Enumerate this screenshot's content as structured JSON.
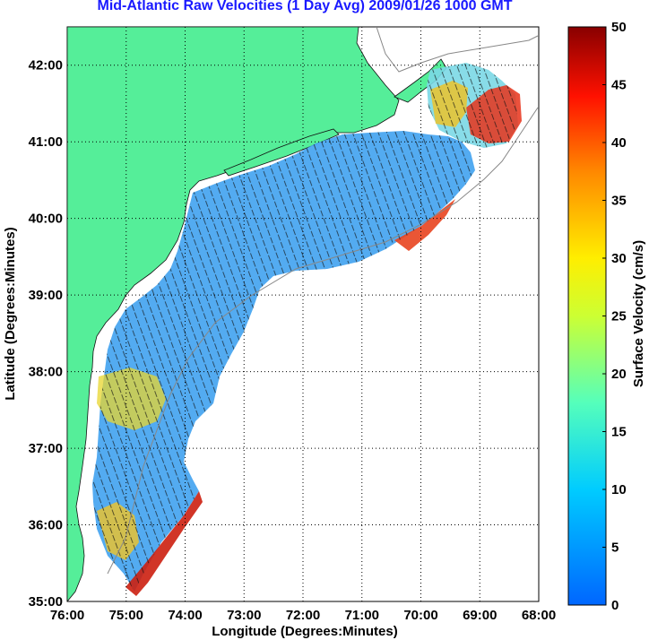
{
  "title": "Mid-Atlantic Raw Velocities (1 Day Avg) 2009/01/26 1000 GMT",
  "map": {
    "xlabel": "Longitude (Degrees:Minutes)",
    "ylabel": "Latitude (Degrees:Minutes)",
    "lon_range": [
      -76,
      -68
    ],
    "lat_range": [
      35,
      42.5
    ],
    "lon_ticks": [
      "76:00",
      "75:00",
      "74:00",
      "73:00",
      "72:00",
      "71:00",
      "70:00",
      "69:00",
      "68:00"
    ],
    "lat_ticks": [
      "35:00",
      "36:00",
      "37:00",
      "38:00",
      "39:00",
      "40:00",
      "41:00",
      "42:00"
    ],
    "grid": "dotted",
    "land_color": "#55ee99"
  },
  "colorbar": {
    "label": "Surface Velocity (cm/s)",
    "range": [
      0,
      50
    ],
    "ticks": [
      "0",
      "5",
      "10",
      "15",
      "20",
      "25",
      "30",
      "35",
      "40",
      "45",
      "50"
    ],
    "colormap": "jet"
  }
}
